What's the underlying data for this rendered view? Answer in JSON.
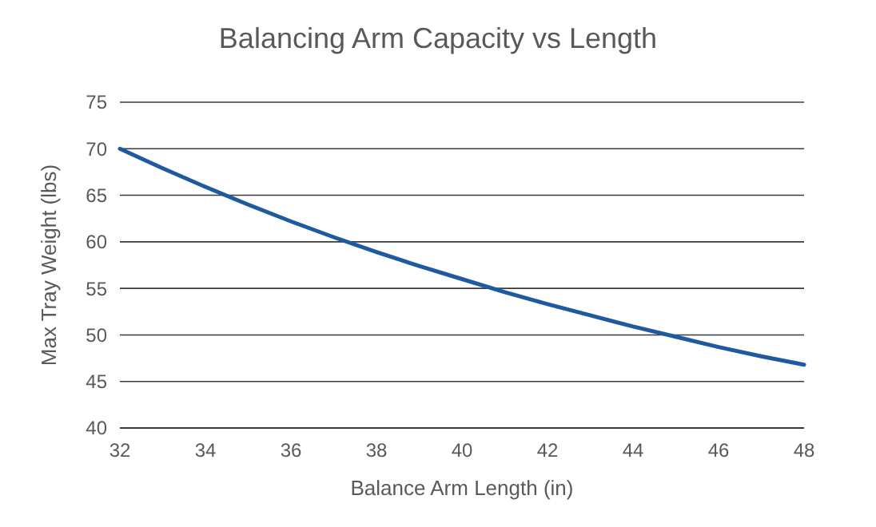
{
  "chart_data": {
    "type": "line",
    "title": "Balancing Arm Capacity vs Length",
    "xlabel": "Balance Arm Length (in)",
    "ylabel": "Max Tray Weight (lbs)",
    "x": [
      32,
      33,
      34,
      35,
      36,
      37,
      38,
      39,
      40,
      41,
      42,
      43,
      44,
      45,
      46,
      47,
      48
    ],
    "series": [
      {
        "color": "#1f5aa0",
        "values": [
          70,
          67.9,
          65.9,
          64,
          62.2,
          60.5,
          58.9,
          57.4,
          56,
          54.6,
          53.3,
          52.1,
          50.9,
          49.8,
          48.7,
          47.7,
          46.8
        ]
      }
    ],
    "xlim": [
      32,
      48
    ],
    "xticks": [
      32,
      34,
      36,
      38,
      40,
      42,
      44,
      46,
      48
    ],
    "ylim": [
      40,
      75
    ],
    "yticks": [
      40,
      45,
      50,
      55,
      60,
      65,
      70,
      75
    ],
    "grid": "y",
    "line_style": "solid"
  }
}
